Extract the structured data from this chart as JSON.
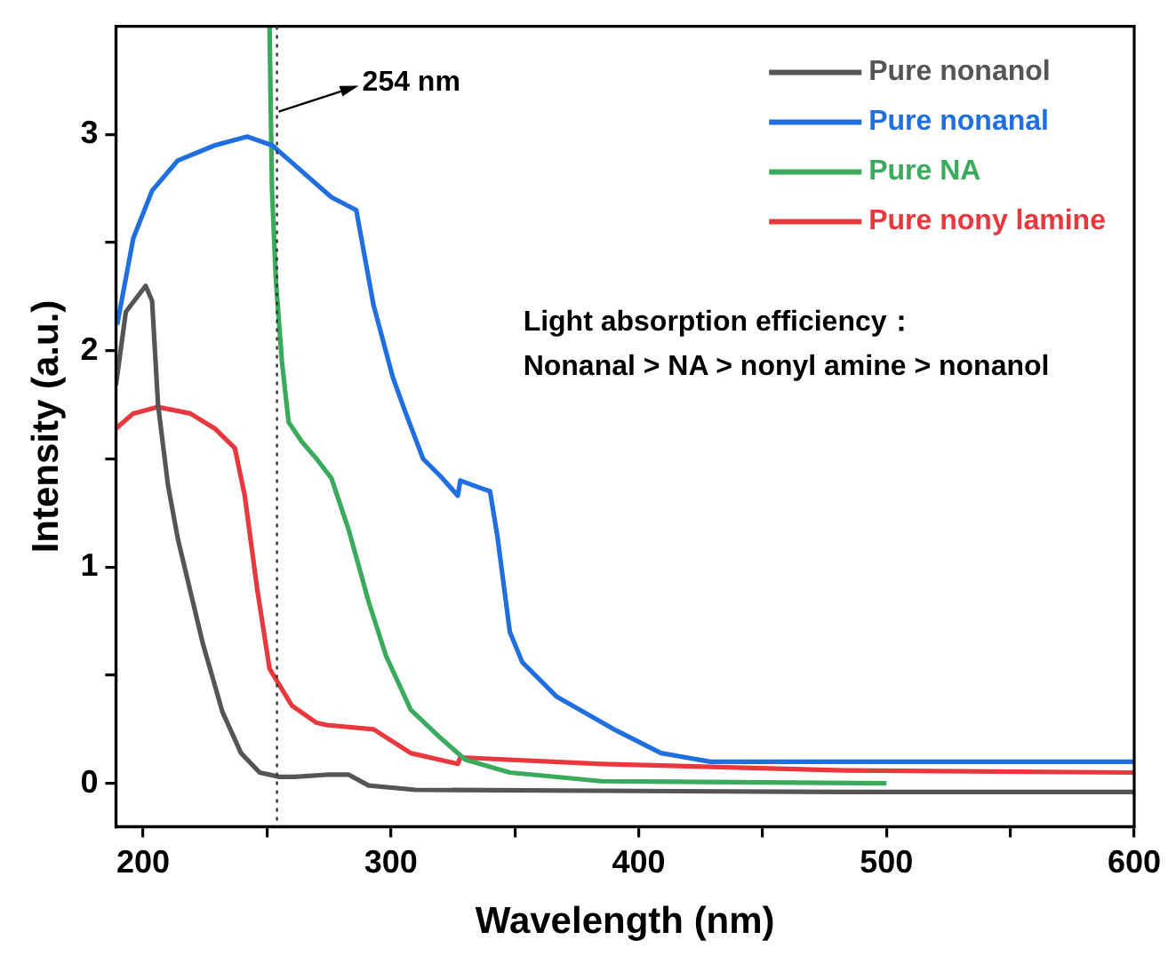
{
  "chart_data": {
    "type": "line",
    "xlabel": "Wavelength (nm)",
    "ylabel": "Intensity (a.u.)",
    "xlim": [
      189,
      600
    ],
    "xticks": [
      200,
      {
        "value": 250,
        "label": null
      },
      300,
      {
        "value": 350,
        "label": null
      },
      400,
      {
        "value": 450,
        "label": null
      },
      500,
      {
        "value": 550,
        "label": null
      },
      600
    ],
    "ylim": [
      -0.2,
      3.5
    ],
    "yticks": [
      0,
      {
        "value": 0.5,
        "label": null
      },
      1,
      {
        "value": 1.5,
        "label": null
      },
      2,
      {
        "value": 2.5,
        "label": null
      },
      3
    ],
    "grid": false,
    "legend": "top right",
    "marker": "none",
    "line_style": "solid",
    "series": [
      {
        "name": "Pure nonanol",
        "color": "#555555",
        "x": [
          189,
          193,
          201,
          203.6,
          206,
          210,
          214,
          224,
          232,
          239.5,
          247,
          255,
          261,
          274,
          283,
          291,
          310,
          483,
          600
        ],
        "values": [
          1.84,
          2.18,
          2.3,
          2.23,
          1.75,
          1.38,
          1.13,
          0.65,
          0.33,
          0.14,
          0.05,
          0.03,
          0.03,
          0.04,
          0.04,
          -0.01,
          -0.03,
          -0.04,
          -0.04
        ]
      },
      {
        "name": "Pure nonanal",
        "color": "#1f6fe0",
        "x": [
          189.5,
          196,
          203.6,
          214,
          229,
          242,
          252,
          261,
          276,
          286,
          293,
          300.7,
          305.7,
          313,
          320,
          327,
          328,
          335,
          340,
          343,
          348,
          353,
          367,
          390,
          409,
          429,
          600
        ],
        "values": [
          2.12,
          2.52,
          2.74,
          2.88,
          2.95,
          2.99,
          2.95,
          2.86,
          2.71,
          2.65,
          2.21,
          1.88,
          1.72,
          1.5,
          1.42,
          1.33,
          1.4,
          1.37,
          1.35,
          1.14,
          0.7,
          0.56,
          0.4,
          0.25,
          0.14,
          0.1,
          0.1
        ]
      },
      {
        "name": "Pure NA",
        "color": "#3aaa5c",
        "x": [
          251,
          252,
          253.6,
          256,
          258.7,
          264,
          270,
          276,
          283,
          291,
          298,
          308,
          320,
          330,
          348,
          385,
          500
        ],
        "values": [
          3.5,
          2.74,
          2.32,
          1.95,
          1.67,
          1.58,
          1.5,
          1.41,
          1.17,
          0.84,
          0.59,
          0.34,
          0.21,
          0.11,
          0.05,
          0.01,
          0
        ]
      },
      {
        "name": "Pure nony lamine",
        "color": "#e8383d",
        "x": [
          189,
          196,
          206,
          219,
          229,
          237,
          241,
          246,
          251,
          260,
          270,
          274,
          293,
          308,
          327,
          328,
          385,
          483,
          600
        ],
        "values": [
          1.64,
          1.71,
          1.74,
          1.71,
          1.64,
          1.55,
          1.33,
          0.9,
          0.53,
          0.36,
          0.28,
          0.27,
          0.25,
          0.14,
          0.09,
          0.12,
          0.09,
          0.06,
          0.05
        ]
      }
    ],
    "ref_lines": [
      {
        "axis": "x",
        "value": 254,
        "label": "254 nm",
        "line_style": "dotted",
        "color": "#333333"
      }
    ],
    "annotations": [
      "Light absorption efficiency：",
      "Nonanal > NA > nonyl amine > nonanol"
    ]
  }
}
